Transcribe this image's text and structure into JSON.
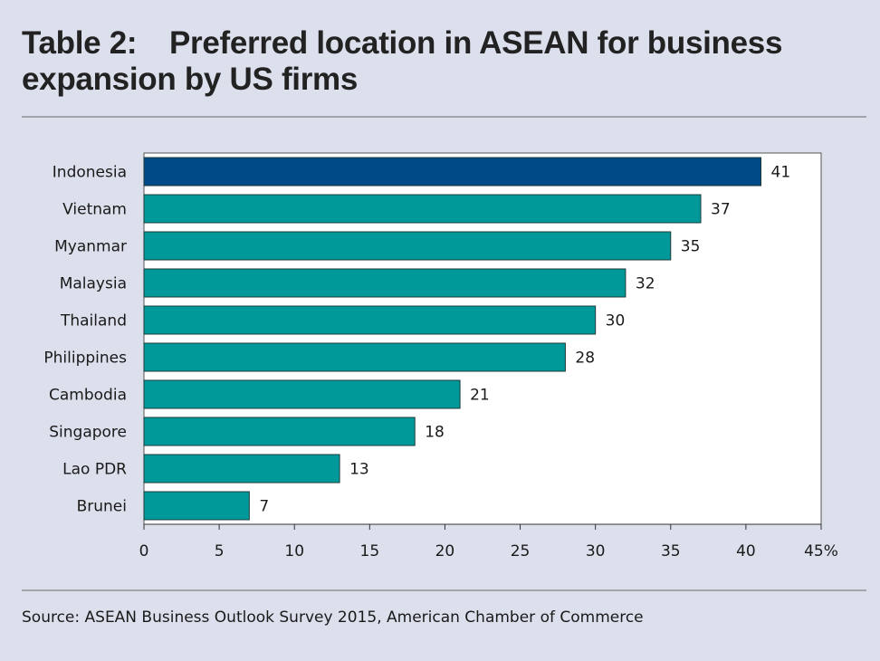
{
  "header": {
    "title_number": "Table 2:",
    "title_text": "Preferred location in ASEAN for business expansion by US firms"
  },
  "footer": {
    "source": "Source: ASEAN Business Outlook Survey 2015, American Chamber of Commerce"
  },
  "colors": {
    "background": "#dcdfec",
    "highlight_bar": "#004a87",
    "bar": "#00999a",
    "rule": "#a3a5ad"
  },
  "chart_data": {
    "type": "bar",
    "orientation": "horizontal",
    "categories": [
      "Indonesia",
      "Vietnam",
      "Myanmar",
      "Malaysia",
      "Thailand",
      "Philippines",
      "Cambodia",
      "Singapore",
      "Lao PDR",
      "Brunei"
    ],
    "values": [
      41,
      37,
      35,
      32,
      30,
      28,
      21,
      18,
      13,
      7
    ],
    "value_labels": [
      "41",
      "37",
      "35",
      "32",
      "30",
      "28",
      "21",
      "18",
      "13",
      "7"
    ],
    "highlight_index": 0,
    "xlim": [
      0,
      45
    ],
    "x_ticks": [
      0,
      5,
      10,
      15,
      20,
      25,
      30,
      35,
      40,
      45
    ],
    "x_tick_labels": [
      "0",
      "5",
      "10",
      "15",
      "20",
      "25",
      "30",
      "35",
      "40",
      "45%"
    ],
    "grid": false,
    "legend": "none"
  }
}
